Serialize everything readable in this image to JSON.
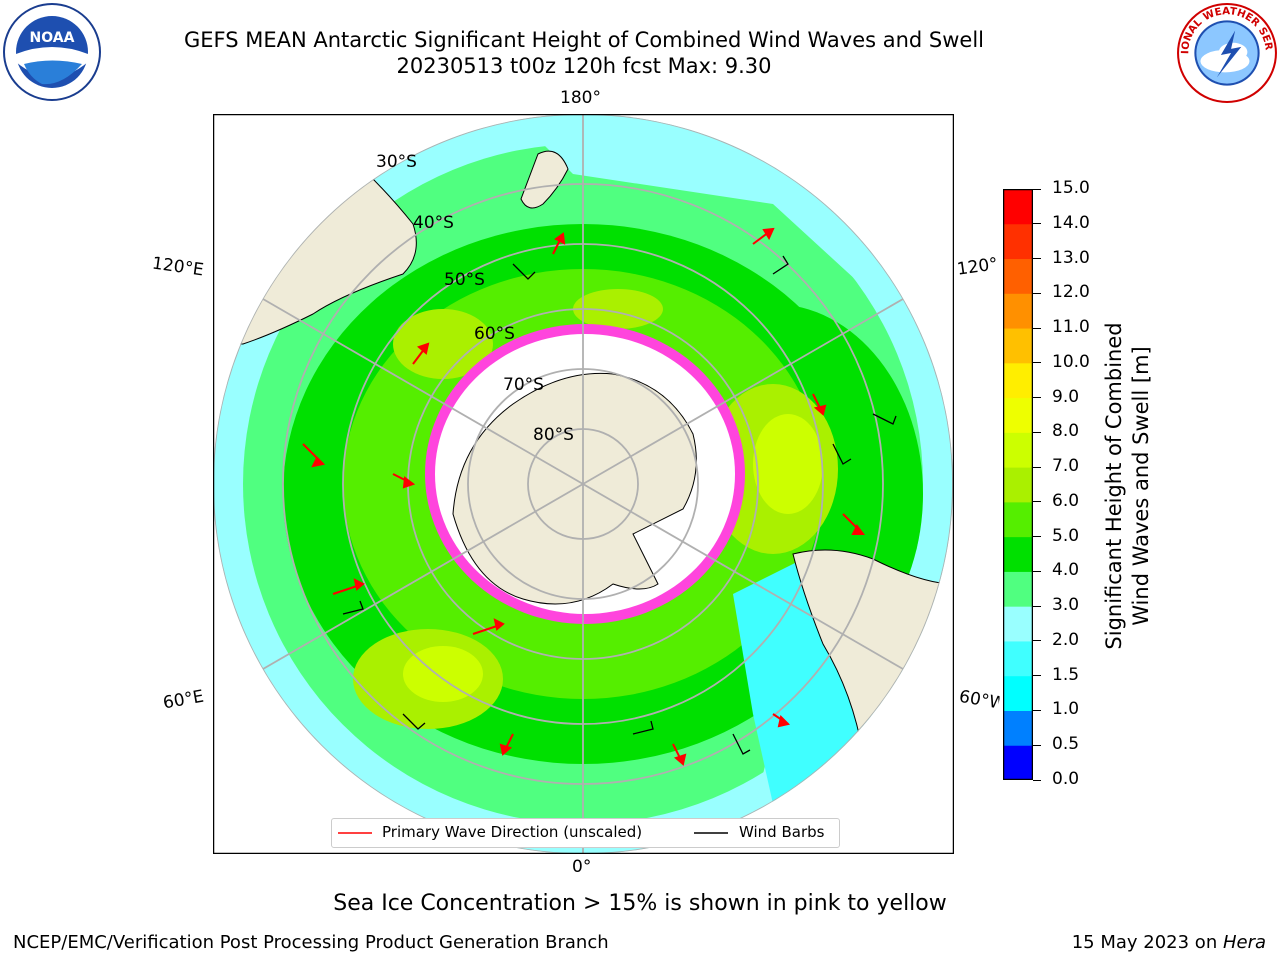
{
  "title": {
    "line1": "GEFS MEAN Antarctic Significant Height of Combined Wind Waves and Swell",
    "line2": "20230513 t00z 120h fcst   Max: 9.30"
  },
  "logos": {
    "left": "NOAA",
    "left_ring": "NATIONAL OCEANIC AND ATMOSPHERIC ADMINISTRATION · U.S. DEPARTMENT OF COMMERCE",
    "right_ring": "NATIONAL WEATHER SERVICE"
  },
  "map": {
    "projection": "south-polar-stereographic",
    "lon_labels": {
      "top": "180°",
      "bottom": "0°",
      "left_upper": "120°E",
      "left_lower": "60°E",
      "right_upper": "120°W",
      "right_lower": "60°W"
    },
    "lat_labels": [
      "30°S",
      "40°S",
      "50°S",
      "60°S",
      "70°S",
      "80°S"
    ],
    "colors": {
      "land": "#efebd8",
      "ice_shelf": "#ffffff",
      "sea_ice": "#ff44dd",
      "grid": "#b0b0b0",
      "arrow": "#ff0000",
      "barb": "#000000"
    }
  },
  "legend": {
    "entries": [
      {
        "label": "Primary Wave Direction (unscaled)",
        "color": "#ff0000"
      },
      {
        "label": "Wind Barbs",
        "color": "#000000"
      }
    ]
  },
  "colorbar": {
    "label_line1": "Significant Height of Combined",
    "label_line2": "Wind Waves and Swell [m]",
    "ticks": [
      "0.0",
      "0.5",
      "1.0",
      "1.5",
      "2.0",
      "3.0",
      "4.0",
      "5.0",
      "6.0",
      "7.0",
      "8.0",
      "9.0",
      "10.0",
      "11.0",
      "12.0",
      "13.0",
      "14.0",
      "15.0"
    ],
    "colors": [
      "#0000ff",
      "#0080ff",
      "#00ffff",
      "#40ffff",
      "#99ffff",
      "#50ff80",
      "#00e000",
      "#55ee00",
      "#aaf000",
      "#ccff00",
      "#eeff00",
      "#ffee00",
      "#ffc000",
      "#ff9000",
      "#ff6000",
      "#ff3000",
      "#ff0000"
    ]
  },
  "footnote": "Sea Ice Concentration > 15% is shown in pink to yellow",
  "credit": "NCEP/EMC/Verification Post Processing Product Generation Branch",
  "date": {
    "text": "15 May 2023 on ",
    "host": "Hera"
  }
}
